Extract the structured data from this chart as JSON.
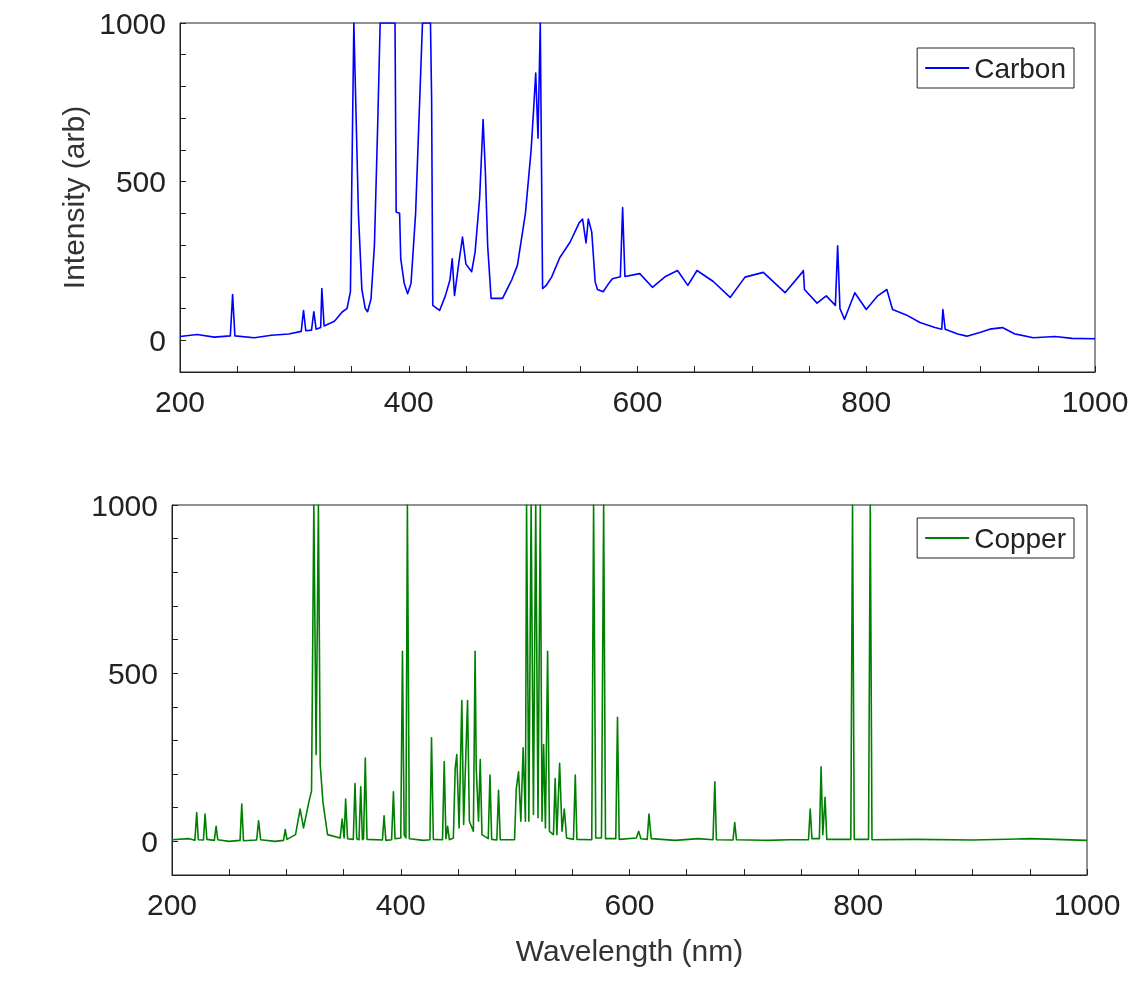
{
  "chart_data": [
    {
      "type": "line",
      "ylabel": "Intensity (arb)",
      "xlim": [
        200,
        1000
      ],
      "ylim": [
        -100,
        1000
      ],
      "xticks": [
        200,
        {
          "value": 250,
          "label": null
        },
        {
          "value": 300,
          "label": null
        },
        {
          "value": 350,
          "label": null
        },
        400,
        {
          "value": 450,
          "label": null
        },
        {
          "value": 500,
          "label": null
        },
        {
          "value": 550,
          "label": null
        },
        600,
        {
          "value": 650,
          "label": null
        },
        {
          "value": 700,
          "label": null
        },
        {
          "value": 750,
          "label": null
        },
        800,
        {
          "value": 850,
          "label": null
        },
        {
          "value": 900,
          "label": null
        },
        {
          "value": 950,
          "label": null
        },
        1000
      ],
      "yticks": [
        {
          "value": -100,
          "label": null
        },
        0,
        {
          "value": 100,
          "label": null
        },
        {
          "value": 200,
          "label": null
        },
        {
          "value": 300,
          "label": null
        },
        {
          "value": 400,
          "label": null
        },
        500,
        {
          "value": 600,
          "label": null
        },
        {
          "value": 700,
          "label": null
        },
        {
          "value": 800,
          "label": null
        },
        {
          "value": 900,
          "label": null
        },
        1000
      ],
      "legend": "top right",
      "grid": false,
      "series": [
        {
          "name": "Carbon",
          "color": "#0000ff",
          "x": [
            200,
            215,
            230,
            244,
            246,
            248,
            265,
            280,
            295,
            306,
            308,
            310,
            315,
            317,
            319,
            323,
            324,
            326,
            335,
            342,
            346,
            349,
            352,
            356,
            359,
            362,
            364,
            367,
            370,
            373,
            375,
            385,
            388,
            389,
            392,
            393,
            396,
            399,
            402,
            406,
            410,
            412,
            419,
            420,
            421,
            427,
            432,
            436,
            438,
            440,
            444,
            447,
            450,
            455,
            458,
            462,
            465,
            467,
            469,
            472,
            482,
            490,
            495,
            502,
            507,
            509,
            511,
            513,
            515,
            517,
            520,
            525,
            532,
            541,
            549,
            552,
            555,
            557,
            560,
            563,
            565,
            570,
            575,
            578,
            585,
            587,
            589,
            602,
            613,
            624,
            635,
            644,
            652,
            666,
            681,
            694,
            710,
            729,
            744,
            745,
            746,
            757,
            765,
            773,
            775,
            777,
            781,
            790,
            800,
            810,
            818,
            823,
            835,
            847,
            860,
            866,
            867,
            869,
            880,
            888,
            900,
            908,
            919,
            930,
            946,
            965,
            980,
            1000
          ],
          "values": [
            12,
            18,
            10,
            14,
            144,
            14,
            8,
            16,
            20,
            28,
            94,
            30,
            32,
            90,
            35,
            40,
            163,
            45,
            60,
            90,
            100,
            153,
            1000,
            400,
            160,
            100,
            90,
            130,
            300,
            700,
            1000,
            1000,
            1000,
            404,
            400,
            257,
            180,
            147,
            180,
            400,
            800,
            1000,
            1000,
            760,
            110,
            94,
            140,
            190,
            257,
            141,
            250,
            325,
            240,
            216,
            278,
            450,
            696,
            529,
            298,
            132,
            132,
            190,
            236,
            400,
            600,
            717,
            842,
            637,
            1000,
            163,
            172,
            200,
            260,
            309,
            370,
            382,
            307,
            382,
            341,
            184,
            160,
            153,
            180,
            194,
            200,
            418,
            201,
            210,
            167,
            200,
            220,
            173,
            220,
            186,
            135,
            199,
            214,
            150,
            214,
            220,
            160,
            117,
            140,
            110,
            298,
            100,
            66,
            150,
            97,
            140,
            160,
            97,
            80,
            56,
            40,
            35,
            97,
            35,
            20,
            13,
            25,
            35,
            40,
            20,
            8,
            12,
            6,
            5
          ]
        }
      ]
    },
    {
      "type": "line",
      "xlabel": "Wavelength (nm)",
      "xlim": [
        200,
        1000
      ],
      "ylim": [
        -100,
        1000
      ],
      "xticks": [
        200,
        {
          "value": 250,
          "label": null
        },
        {
          "value": 300,
          "label": null
        },
        {
          "value": 350,
          "label": null
        },
        400,
        {
          "value": 450,
          "label": null
        },
        {
          "value": 500,
          "label": null
        },
        {
          "value": 550,
          "label": null
        },
        600,
        {
          "value": 650,
          "label": null
        },
        {
          "value": 700,
          "label": null
        },
        {
          "value": 750,
          "label": null
        },
        800,
        {
          "value": 850,
          "label": null
        },
        {
          "value": 900,
          "label": null
        },
        {
          "value": 950,
          "label": null
        },
        1000
      ],
      "yticks": [
        {
          "value": -100,
          "label": null
        },
        0,
        {
          "value": 100,
          "label": null
        },
        {
          "value": 200,
          "label": null
        },
        {
          "value": 300,
          "label": null
        },
        {
          "value": 400,
          "label": null
        },
        500,
        {
          "value": 600,
          "label": null
        },
        {
          "value": 700,
          "label": null
        },
        {
          "value": 800,
          "label": null
        },
        {
          "value": 900,
          "label": null
        },
        1000
      ],
      "legend": "top right",
      "grid": false,
      "series": [
        {
          "name": "Copper",
          "color": "#008000",
          "x": [
            200,
            215,
            220,
            221.6,
            223,
            227.5,
            228.9,
            230.5,
            237,
            238.6,
            240,
            250,
            259.5,
            261,
            262.5,
            274,
            275.7,
            277.5,
            290,
            297.5,
            299,
            300.5,
            308,
            312,
            315,
            319.6,
            322,
            324,
            326,
            328,
            329.6,
            332,
            336,
            347,
            348.8,
            350.5,
            351.8,
            353.5,
            358.5,
            360,
            361.5,
            363.5,
            365,
            366.5,
            367.5,
            369,
            370.5,
            384,
            385.4,
            387,
            392,
            393.6,
            395,
            400,
            401.5,
            403,
            404.5,
            405.8,
            407.5,
            420,
            425.5,
            426.9,
            428.5,
            436.5,
            438,
            439.5,
            441,
            442.5,
            446,
            447.6,
            449,
            451,
            453.4,
            455,
            458.4,
            460,
            463.5,
            465,
            466,
            468,
            469.5,
            471,
            476.5,
            478,
            479.5,
            484,
            485.5,
            487,
            499.5,
            501,
            503,
            505,
            507,
            509,
            510,
            512,
            514,
            516,
            518,
            520,
            522,
            523.5,
            524.9,
            526.5,
            528.4,
            530,
            533.5,
            535,
            536.5,
            538.9,
            541,
            543,
            545,
            551,
            552.6,
            554,
            567,
            568.6,
            570.5,
            575.5,
            577.4,
            579,
            588,
            589.5,
            591,
            606,
            608,
            610,
            615.5,
            617,
            619,
            640,
            660,
            673,
            674.6,
            676,
            690.5,
            692,
            693.5,
            720,
            740,
            756.5,
            758,
            759.5,
            766,
            767.5,
            769,
            771,
            772.5,
            793.5,
            795,
            796.5,
            809,
            810.5,
            812,
            850,
            900,
            950,
            1000
          ],
          "values": [
            5,
            8,
            3,
            86,
            5,
            4,
            81,
            6,
            3,
            45,
            5,
            0,
            3,
            111,
            2,
            4,
            61,
            5,
            0,
            3,
            35,
            6,
            20,
            96,
            40,
            116,
            150,
            1000,
            258,
            1000,
            227,
            116,
            20,
            10,
            66,
            10,
            126,
            8,
            6,
            172,
            8,
            5,
            162,
            5,
            8,
            248,
            6,
            4,
            76,
            3,
            5,
            147,
            8,
            10,
            565,
            20,
            10,
            1000,
            8,
            3,
            5,
            308,
            6,
            5,
            237,
            8,
            45,
            5,
            10,
            217,
            258,
            40,
            419,
            50,
            419,
            60,
            30,
            565,
            217,
            60,
            243,
            20,
            8,
            197,
            6,
            4,
            152,
            5,
            5,
            157,
            207,
            60,
            278,
            60,
            1000,
            60,
            1000,
            80,
            1000,
            70,
            1000,
            60,
            288,
            40,
            565,
            30,
            20,
            187,
            20,
            232,
            30,
            96,
            10,
            6,
            197,
            6,
            5,
            1000,
            10,
            10,
            1000,
            8,
            8,
            369,
            6,
            10,
            30,
            8,
            6,
            81,
            8,
            3,
            8,
            5,
            177,
            5,
            4,
            56,
            5,
            3,
            5,
            5,
            96,
            8,
            8,
            222,
            20,
            131,
            6,
            6,
            1000,
            6,
            6,
            1000,
            5,
            6,
            4,
            8,
            3
          ]
        }
      ]
    }
  ]
}
